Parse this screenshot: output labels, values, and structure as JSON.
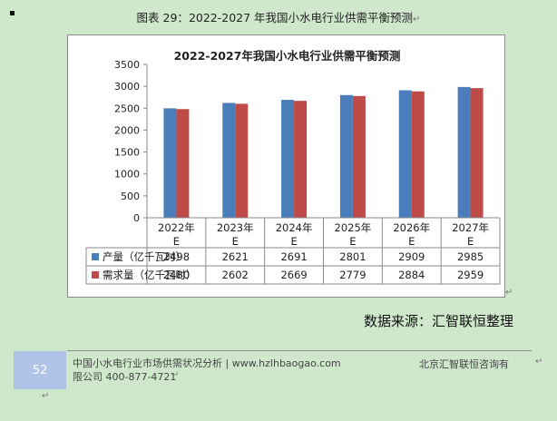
{
  "caption": {
    "label": "图表  29：",
    "text": "2022-2027 年我国小水电行业供需平衡预测"
  },
  "chart_data": {
    "type": "bar",
    "title": "2022-2027年我国小水电行业供需平衡预测",
    "categories": [
      "2022年E",
      "2023年E",
      "2024年E",
      "2025年E",
      "2026年E",
      "2027年E"
    ],
    "series": [
      {
        "name": "产量（亿千瓦时）",
        "color": "#4a7ebb",
        "values": [
          2498,
          2621,
          2691,
          2801,
          2909,
          2985
        ]
      },
      {
        "name": "需求量（亿千瓦时）",
        "color": "#be4b48",
        "values": [
          2480,
          2602,
          2669,
          2779,
          2884,
          2959
        ]
      }
    ],
    "yticks": [
      0,
      500,
      1000,
      1500,
      2000,
      2500,
      3000,
      3500
    ],
    "ylim": [
      0,
      3500
    ],
    "grid": false,
    "legend": "data table below chart"
  },
  "source": "数据来源：汇智联恒整理",
  "footer": {
    "page_number": "52",
    "left_text": "中国小水电行业市场供需状况分析 | www.hzlhbaogao.com 限公司  400-877-4721",
    "right_text": "北京汇智联恒咨询有"
  }
}
